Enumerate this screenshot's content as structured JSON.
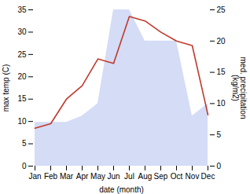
{
  "chart_data": {
    "type": "line",
    "xlabel": "date (month)",
    "ylabel": "max temp (C)",
    "y2label": "med. precipitation\n(kg/m2)",
    "categories": [
      "Jan",
      "Feb",
      "Mar",
      "Apr",
      "May",
      "Jun",
      "Jul",
      "Aug",
      "Sep",
      "Oct",
      "Nov",
      "Dec"
    ],
    "series": [
      {
        "type": "area",
        "axis": "y2",
        "color": "#b8c4f0",
        "values": [
          7.0,
          7.0,
          7.0,
          8.0,
          10.0,
          25.0,
          25.0,
          20.0,
          20.0,
          20.0,
          8.0,
          10.0
        ]
      },
      {
        "type": "line",
        "color": "#c0392b",
        "values": [
          8.5,
          9.5,
          15.0,
          18.0,
          24.0,
          23.0,
          33.5,
          32.5,
          30.0,
          28.0,
          27.0,
          11.5
        ]
      }
    ],
    "ylim": [
      0,
      35
    ],
    "yticks": [
      0,
      5,
      10,
      15,
      20,
      25,
      30,
      35
    ],
    "y2lim": [
      0,
      25
    ],
    "y2ticks": [
      0,
      5,
      10,
      15,
      20,
      25
    ],
    "grid": false
  }
}
